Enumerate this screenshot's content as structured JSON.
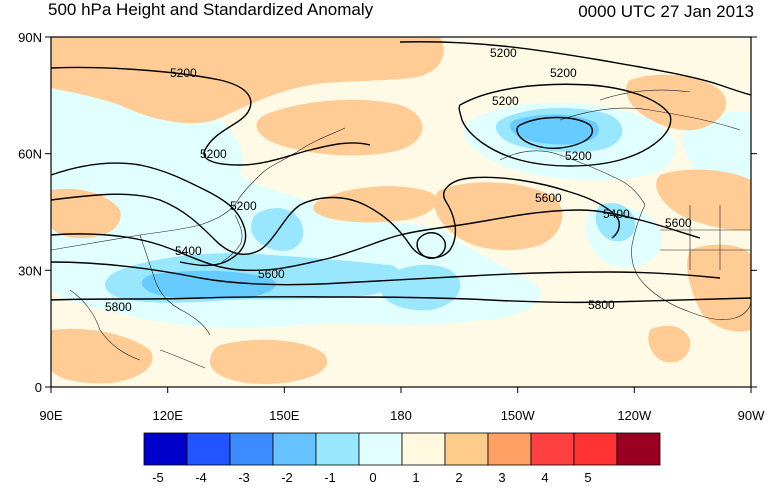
{
  "title": "500 hPa Height and Standardized Anomaly",
  "valid_time": "0000 UTC 27 Jan 2013",
  "map": {
    "lat_ticks": [
      "90N",
      "60N",
      "30N",
      "0"
    ],
    "lon_ticks": [
      "90E",
      "120E",
      "150E",
      "180",
      "150W",
      "120W",
      "90W"
    ],
    "domain": {
      "lon_min": 90,
      "lon_max": 270,
      "lat_min": 0,
      "lat_max": 90
    },
    "contour_labels": [
      "5200",
      "5200",
      "5200",
      "5200",
      "5200",
      "5200",
      "5200",
      "5400",
      "5400",
      "5600",
      "5600",
      "5600",
      "5800",
      "5800"
    ],
    "anomaly_colors": {
      "neg1": "#e1ffff",
      "neg2": "#99e6ff",
      "neg3": "#66ccff",
      "pos1": "#fffae6",
      "pos2": "#ffcc96"
    }
  },
  "colorbar": {
    "labels": [
      "-5",
      "-4",
      "-3",
      "-2",
      "-1",
      "0",
      "1",
      "2",
      "3",
      "4",
      "5"
    ],
    "colors": [
      "#0000cc",
      "#2255ff",
      "#3d8cff",
      "#66c3ff",
      "#99e8ff",
      "#e1ffff",
      "#fff9e0",
      "#ffcc8c",
      "#ffa064",
      "#ff4040",
      "#ff3333",
      "#990022"
    ]
  }
}
